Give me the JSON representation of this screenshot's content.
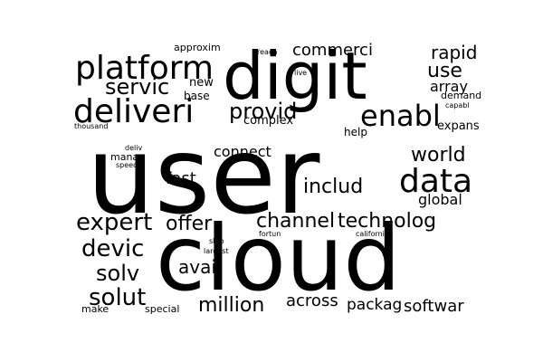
{
  "words": [
    {
      "text": "user"
    },
    {
      "text": "cloud"
    },
    {
      "text": "digit"
    },
    {
      "text": "platform"
    },
    {
      "text": "deliveri"
    },
    {
      "text": "data"
    },
    {
      "text": "enabl"
    },
    {
      "text": "expert"
    },
    {
      "text": "devic"
    },
    {
      "text": "solut"
    },
    {
      "text": "solv"
    },
    {
      "text": "technolog"
    },
    {
      "text": "channel"
    },
    {
      "text": "offer"
    },
    {
      "text": "million"
    },
    {
      "text": "world"
    },
    {
      "text": "includ"
    },
    {
      "text": "servic"
    },
    {
      "text": "provid"
    },
    {
      "text": "rapid"
    },
    {
      "text": "use"
    },
    {
      "text": "array"
    },
    {
      "text": "commerci"
    },
    {
      "text": "softwar"
    },
    {
      "text": "packag"
    },
    {
      "text": "across"
    },
    {
      "text": "avail"
    },
    {
      "text": "fast"
    },
    {
      "text": "connect"
    },
    {
      "text": "global"
    },
    {
      "text": "complex"
    },
    {
      "text": "expans"
    },
    {
      "text": "new"
    },
    {
      "text": "base"
    },
    {
      "text": "help"
    },
    {
      "text": "demand"
    },
    {
      "text": "approxim"
    },
    {
      "text": "manag"
    },
    {
      "text": "make"
    },
    {
      "text": "special"
    },
    {
      "text": "reach"
    },
    {
      "text": "live"
    },
    {
      "text": "capabl"
    },
    {
      "text": "thousand"
    },
    {
      "text": "deliv"
    },
    {
      "text": "speed"
    },
    {
      "text": "ship"
    },
    {
      "text": "largest"
    },
    {
      "text": "fortun"
    },
    {
      "text": "california"
    }
  ],
  "colors": {
    "background": "#ffffff",
    "text": "#000000"
  }
}
